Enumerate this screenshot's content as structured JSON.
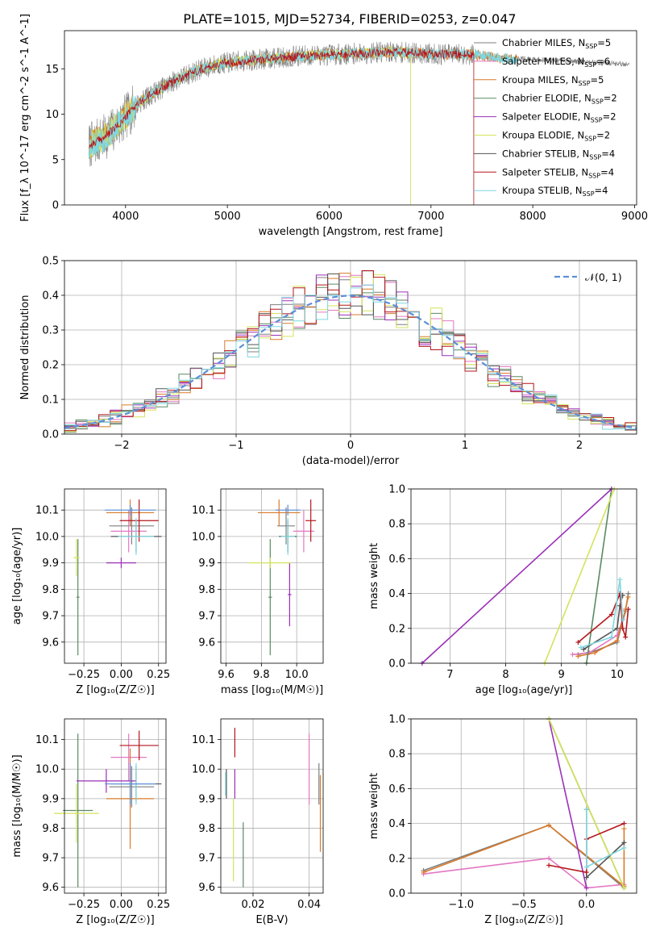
{
  "figure": {
    "title": "PLATE=1015, MJD=52734, FIBERID=0253, z=0.047",
    "colors": {
      "Chabrier MILES": "#7f7f7f",
      "Salpeter MILES": "#e377c2",
      "Kroupa MILES": "#d97b2a",
      "Chabrier ELODIE": "#5a8a62",
      "Salpeter ELODIE": "#9b30b8",
      "Kroupa ELODIE": "#d4e35a",
      "Chabrier STELIB": "#555555",
      "Salpeter STELIB": "#b5161c",
      "Kroupa STELIB": "#7fd7e0",
      "normal": "#5b8fd9"
    }
  },
  "chart_data": [
    {
      "id": "spectrum",
      "type": "line",
      "xlabel": "wavelength [Angstrom, rest frame]",
      "ylabel": "Flux [f_λ 10^-17 erg cm^-2 s^-1 A^-1]",
      "xlim": [
        3400,
        9020
      ],
      "ylim": [
        0,
        19.2
      ],
      "xticks": [
        "4000",
        "5000",
        "6000",
        "7000",
        "8000",
        "9000"
      ],
      "yticks": [
        "0",
        "5",
        "10",
        "15"
      ],
      "grid": false,
      "legend_position": "right",
      "legend": [
        {
          "label": "Chabrier MILES, N",
          "sub": "SSP",
          "tail": "=5"
        },
        {
          "label": "Salpeter MILES, N",
          "sub": "SSP",
          "tail": "=6"
        },
        {
          "label": "Kroupa MILES, N",
          "sub": "SSP",
          "tail": "=5"
        },
        {
          "label": "Chabrier ELODIE, N",
          "sub": "SSP",
          "tail": "=2"
        },
        {
          "label": "Salpeter ELODIE, N",
          "sub": "SSP",
          "tail": "=2"
        },
        {
          "label": "Kroupa ELODIE, N",
          "sub": "SSP",
          "tail": "=2"
        },
        {
          "label": "Chabrier STELIB, N",
          "sub": "SSP",
          "tail": "=4"
        },
        {
          "label": "Salpeter STELIB, N",
          "sub": "SSP",
          "tail": "=4"
        },
        {
          "label": "Kroupa STELIB, N",
          "sub": "SSP",
          "tail": "=4"
        }
      ],
      "data_curve": {
        "x": [
          3640,
          3800,
          3950,
          4100,
          4300,
          4500,
          4700,
          4900,
          5100,
          5300,
          5500,
          5700,
          5900,
          6100,
          6300,
          6500,
          6700,
          6900,
          7100,
          7300,
          7500,
          7700,
          7850
        ],
        "y": [
          6.5,
          7.5,
          9.0,
          11.0,
          12.5,
          13.8,
          14.8,
          15.5,
          15.8,
          16.0,
          16.2,
          16.4,
          16.5,
          16.6,
          16.7,
          16.8,
          16.8,
          16.7,
          16.6,
          16.6,
          16.5,
          16.2,
          16.0
        ]
      }
    },
    {
      "id": "residuals",
      "type": "area",
      "xlabel": "(data-model)/error",
      "ylabel": "Normed distribution",
      "xlim": [
        -2.5,
        2.5
      ],
      "ylim": [
        0,
        0.5
      ],
      "xticks": [
        "−2",
        "−1",
        "0",
        "1",
        "2"
      ],
      "yticks": [
        "0.0",
        "0.1",
        "0.2",
        "0.3",
        "0.4",
        "0.5"
      ],
      "grid": true,
      "legend_position": "top-right",
      "legend": "𝒩(0, 1)",
      "bin_width": 0.1,
      "reference_curve": {
        "mean": 0,
        "sigma": 1
      }
    },
    {
      "id": "age-vs-Z",
      "type": "scatter",
      "xlabel": "Z [log₁₀(Z/Z☉)]",
      "ylabel": "age  [log₁₀(age/yr)]",
      "xlim": [
        -0.38,
        0.3
      ],
      "ylim": [
        9.52,
        10.18
      ],
      "xticks": [
        "−0.25",
        "0.00",
        "0.25"
      ],
      "yticks": [
        "9.6",
        "9.7",
        "9.8",
        "9.9",
        "10.0",
        "10.1"
      ],
      "grid": true,
      "points": [
        {
          "model": "Chabrier MILES",
          "x": 0.07,
          "y": 10.04,
          "dx": 0.15,
          "dy": 0.07
        },
        {
          "model": "Salpeter MILES",
          "x": 0.05,
          "y": 10.02,
          "dx": 0.12,
          "dy": 0.08
        },
        {
          "model": "Kroupa MILES",
          "x": 0.06,
          "y": 10.09,
          "dx": 0.16,
          "dy": 0.05
        },
        {
          "model": "Chabrier ELODIE",
          "x": -0.29,
          "y": 9.77,
          "dx": 0.01,
          "dy": 0.22
        },
        {
          "model": "Salpeter ELODIE",
          "x": 0.0,
          "y": 9.9,
          "dx": 0.1,
          "dy": 0.02
        },
        {
          "model": "Kroupa ELODIE",
          "x": -0.3,
          "y": 9.92,
          "dx": 0.02,
          "dy": 0.07
        },
        {
          "model": "Chabrier STELIB",
          "x": 0.1,
          "y": 10.0,
          "dx": 0.17,
          "dy": 0.06
        },
        {
          "model": "Salpeter STELIB",
          "x": 0.12,
          "y": 10.06,
          "dx": 0.13,
          "dy": 0.08
        },
        {
          "model": "Kroupa STELIB",
          "x": 0.1,
          "y": 10.0,
          "dx": 0.12,
          "dy": 0.07
        },
        {
          "model": "normal",
          "x": 0.06,
          "y": 10.1,
          "dx": 0.17,
          "dy": 0.02
        }
      ]
    },
    {
      "id": "age-vs-mass",
      "type": "scatter",
      "xlabel": "mass [log₁₀(M/M☉)]",
      "ylabel": "",
      "xlim": [
        9.57,
        10.15
      ],
      "ylim": [
        9.52,
        10.18
      ],
      "xticks": [
        "9.6",
        "9.8",
        "10.0"
      ],
      "yticks": [
        "9.6",
        "9.7",
        "9.8",
        "9.9",
        "10.0",
        "10.1"
      ],
      "grid": true,
      "points": [
        {
          "model": "Chabrier MILES",
          "x": 9.94,
          "y": 10.04,
          "dx": 0.05,
          "dy": 0.07
        },
        {
          "model": "Salpeter MILES",
          "x": 10.04,
          "y": 10.02,
          "dx": 0.06,
          "dy": 0.08
        },
        {
          "model": "Kroupa MILES",
          "x": 9.9,
          "y": 10.09,
          "dx": 0.12,
          "dy": 0.05
        },
        {
          "model": "Chabrier ELODIE",
          "x": 9.85,
          "y": 9.77,
          "dx": 0.01,
          "dy": 0.22
        },
        {
          "model": "Salpeter ELODIE",
          "x": 9.96,
          "y": 9.78,
          "dx": 0.01,
          "dy": 0.12
        },
        {
          "model": "Kroupa ELODIE",
          "x": 9.85,
          "y": 9.9,
          "dx": 0.12,
          "dy": 0.02
        },
        {
          "model": "Chabrier STELIB",
          "x": 9.95,
          "y": 10.0,
          "dx": 0.05,
          "dy": 0.06
        },
        {
          "model": "Salpeter STELIB",
          "x": 10.08,
          "y": 10.06,
          "dx": 0.03,
          "dy": 0.08
        },
        {
          "model": "Kroupa STELIB",
          "x": 9.95,
          "y": 10.0,
          "dx": 0.04,
          "dy": 0.07
        },
        {
          "model": "normal",
          "x": 9.95,
          "y": 10.1,
          "dx": 0.07,
          "dy": 0.02
        }
      ]
    },
    {
      "id": "mass-weight-vs-age",
      "type": "line",
      "xlabel": "age  [log₁₀(age/yr)]",
      "ylabel": "mass weight",
      "xlim": [
        6.3,
        10.35
      ],
      "ylim": [
        0,
        1
      ],
      "xticks": [
        "7",
        "8",
        "9",
        "10"
      ],
      "yticks": [
        "0.0",
        "0.2",
        "0.4",
        "0.6",
        "0.8",
        "1.0"
      ],
      "grid": true,
      "series": [
        {
          "model": "Chabrier MILES",
          "x": [
            9.3,
            9.6,
            10.0,
            10.15,
            10.2
          ],
          "y": [
            0.05,
            0.07,
            0.12,
            0.3,
            0.4
          ]
        },
        {
          "model": "Salpeter MILES",
          "x": [
            9.2,
            9.5,
            10.0,
            10.1
          ],
          "y": [
            0.05,
            0.06,
            0.16,
            0.25
          ]
        },
        {
          "model": "Kroupa MILES",
          "x": [
            9.3,
            9.6,
            10.0,
            10.15,
            10.2
          ],
          "y": [
            0.04,
            0.06,
            0.13,
            0.31,
            0.38
          ]
        },
        {
          "model": "Chabrier ELODIE",
          "x": [
            9.45,
            9.9
          ],
          "y": [
            0.0,
            1.0
          ]
        },
        {
          "model": "Salpeter ELODIE",
          "x": [
            6.5,
            9.9
          ],
          "y": [
            0.0,
            1.0
          ]
        },
        {
          "model": "Kroupa ELODIE",
          "x": [
            8.7,
            9.95
          ],
          "y": [
            0.0,
            1.0
          ]
        },
        {
          "model": "Chabrier STELIB",
          "x": [
            9.4,
            10.0,
            10.05,
            10.1
          ],
          "y": [
            0.08,
            0.2,
            0.33,
            0.39
          ]
        },
        {
          "model": "Salpeter STELIB",
          "x": [
            9.3,
            9.9,
            10.05,
            10.1,
            10.15,
            10.2
          ],
          "y": [
            0.12,
            0.28,
            0.4,
            0.2,
            0.15,
            0.31
          ]
        },
        {
          "model": "Kroupa STELIB",
          "x": [
            9.35,
            9.9,
            10.05,
            10.1
          ],
          "y": [
            0.09,
            0.15,
            0.48,
            0.25
          ]
        }
      ]
    },
    {
      "id": "mass-vs-Z",
      "type": "scatter",
      "xlabel": "Z [log₁₀(Z/Z☉)]",
      "ylabel": "mass [log₁₀(M/M☉)]",
      "xlim": [
        -0.38,
        0.3
      ],
      "ylim": [
        9.58,
        10.17
      ],
      "xticks": [
        "−0.25",
        "0.00",
        "0.25"
      ],
      "yticks": [
        "9.6",
        "9.7",
        "9.8",
        "9.9",
        "10.0",
        "10.1"
      ],
      "grid": true,
      "points": [
        {
          "model": "Chabrier MILES",
          "x": 0.07,
          "y": 9.94,
          "dx": 0.15,
          "dy": 0.07
        },
        {
          "model": "Salpeter MILES",
          "x": 0.05,
          "y": 10.04,
          "dx": 0.12,
          "dy": 0.08
        },
        {
          "model": "Kroupa MILES",
          "x": 0.06,
          "y": 9.9,
          "dx": 0.16,
          "dy": 0.17
        },
        {
          "model": "Chabrier ELODIE",
          "x": -0.29,
          "y": 9.86,
          "dx": 0.1,
          "dy": 0.26
        },
        {
          "model": "Salpeter ELODIE",
          "x": -0.1,
          "y": 9.96,
          "dx": 0.2,
          "dy": 0.04
        },
        {
          "model": "Kroupa ELODIE",
          "x": -0.3,
          "y": 9.85,
          "dx": 0.15,
          "dy": 0.1
        },
        {
          "model": "Chabrier STELIB",
          "x": 0.1,
          "y": 9.95,
          "dx": 0.17,
          "dy": 0.06
        },
        {
          "model": "Salpeter STELIB",
          "x": 0.12,
          "y": 10.08,
          "dx": 0.13,
          "dy": 0.05
        },
        {
          "model": "Kroupa STELIB",
          "x": 0.1,
          "y": 9.95,
          "dx": 0.12,
          "dy": 0.07
        },
        {
          "model": "normal",
          "x": 0.06,
          "y": 9.95,
          "dx": 0.17,
          "dy": 0.07
        }
      ]
    },
    {
      "id": "mass-vs-EBV",
      "type": "scatter",
      "xlabel": "E(B-V)",
      "ylabel": "",
      "xlim": [
        0.0085,
        0.045
      ],
      "ylim": [
        9.58,
        10.17
      ],
      "xticks": [
        "0.02",
        "0.04"
      ],
      "yticks": [
        "9.6",
        "9.7",
        "9.8",
        "9.9",
        "10.0",
        "10.1"
      ],
      "grid": true,
      "points": [
        {
          "model": "Chabrier MILES",
          "x": 0.0435,
          "y": 9.95,
          "dx": 0.0,
          "dy": 0.07
        },
        {
          "model": "Salpeter MILES",
          "x": 0.04,
          "y": 10.0,
          "dx": 0.0,
          "dy": 0.12
        },
        {
          "model": "Kroupa MILES",
          "x": 0.044,
          "y": 9.85,
          "dx": 0.0,
          "dy": 0.13
        },
        {
          "model": "Chabrier ELODIE",
          "x": 0.0165,
          "y": 9.71,
          "dx": 0.0,
          "dy": 0.11
        },
        {
          "model": "Salpeter ELODIE",
          "x": 0.0135,
          "y": 9.95,
          "dx": 0.0,
          "dy": 0.05
        },
        {
          "model": "Kroupa ELODIE",
          "x": 0.013,
          "y": 9.76,
          "dx": 0.0,
          "dy": 0.14
        },
        {
          "model": "Chabrier STELIB",
          "x": 0.0105,
          "y": 9.95,
          "dx": 0.0,
          "dy": 0.05
        },
        {
          "model": "Salpeter STELIB",
          "x": 0.0135,
          "y": 10.09,
          "dx": 0.0,
          "dy": 0.05
        },
        {
          "model": "Kroupa STELIB",
          "x": 0.0102,
          "y": 9.95,
          "dx": 0.0,
          "dy": 0.04
        }
      ]
    },
    {
      "id": "mass-weight-vs-Z",
      "type": "line",
      "xlabel": "Z [log₁₀(Z/Z☉)]",
      "ylabel": "mass weight",
      "xlim": [
        -1.4,
        0.4
      ],
      "ylim": [
        0,
        1
      ],
      "xticks": [
        "−1.0",
        "−0.5",
        "0.0"
      ],
      "yticks": [
        "0.0",
        "0.2",
        "0.4",
        "0.6",
        "0.8",
        "1.0"
      ],
      "grid": true,
      "series": [
        {
          "model": "Chabrier MILES",
          "x": [
            -1.3,
            -0.3,
            0.3
          ],
          "y": [
            0.13,
            0.39,
            0.03
          ]
        },
        {
          "model": "Salpeter MILES",
          "x": [
            -1.3,
            -0.3,
            0.0,
            0.3
          ],
          "y": [
            0.11,
            0.2,
            0.03,
            0.05
          ]
        },
        {
          "model": "Kroupa MILES",
          "x": [
            -1.3,
            -0.3,
            0.3,
            0.3
          ],
          "y": [
            0.12,
            0.39,
            0.04,
            0.37
          ]
        },
        {
          "model": "Chabrier ELODIE",
          "x": [
            -0.3,
            0.3
          ],
          "y": [
            1.0,
            0.03
          ]
        },
        {
          "model": "Salpeter ELODIE",
          "x": [
            -0.3,
            0.0
          ],
          "y": [
            1.0,
            0.03
          ]
        },
        {
          "model": "Kroupa ELODIE",
          "x": [
            -0.3,
            0.3
          ],
          "y": [
            1.0,
            0.03
          ]
        },
        {
          "model": "Chabrier STELIB",
          "x": [
            0.0,
            0.0,
            0.3
          ],
          "y": [
            0.48,
            0.09,
            0.29
          ]
        },
        {
          "model": "Salpeter STELIB",
          "x": [
            -0.3,
            0.0,
            0.0,
            0.3
          ],
          "y": [
            0.16,
            0.12,
            0.31,
            0.4
          ]
        },
        {
          "model": "Kroupa STELIB",
          "x": [
            0.0,
            0.0,
            0.3
          ],
          "y": [
            0.48,
            0.15,
            0.26
          ]
        }
      ]
    }
  ]
}
